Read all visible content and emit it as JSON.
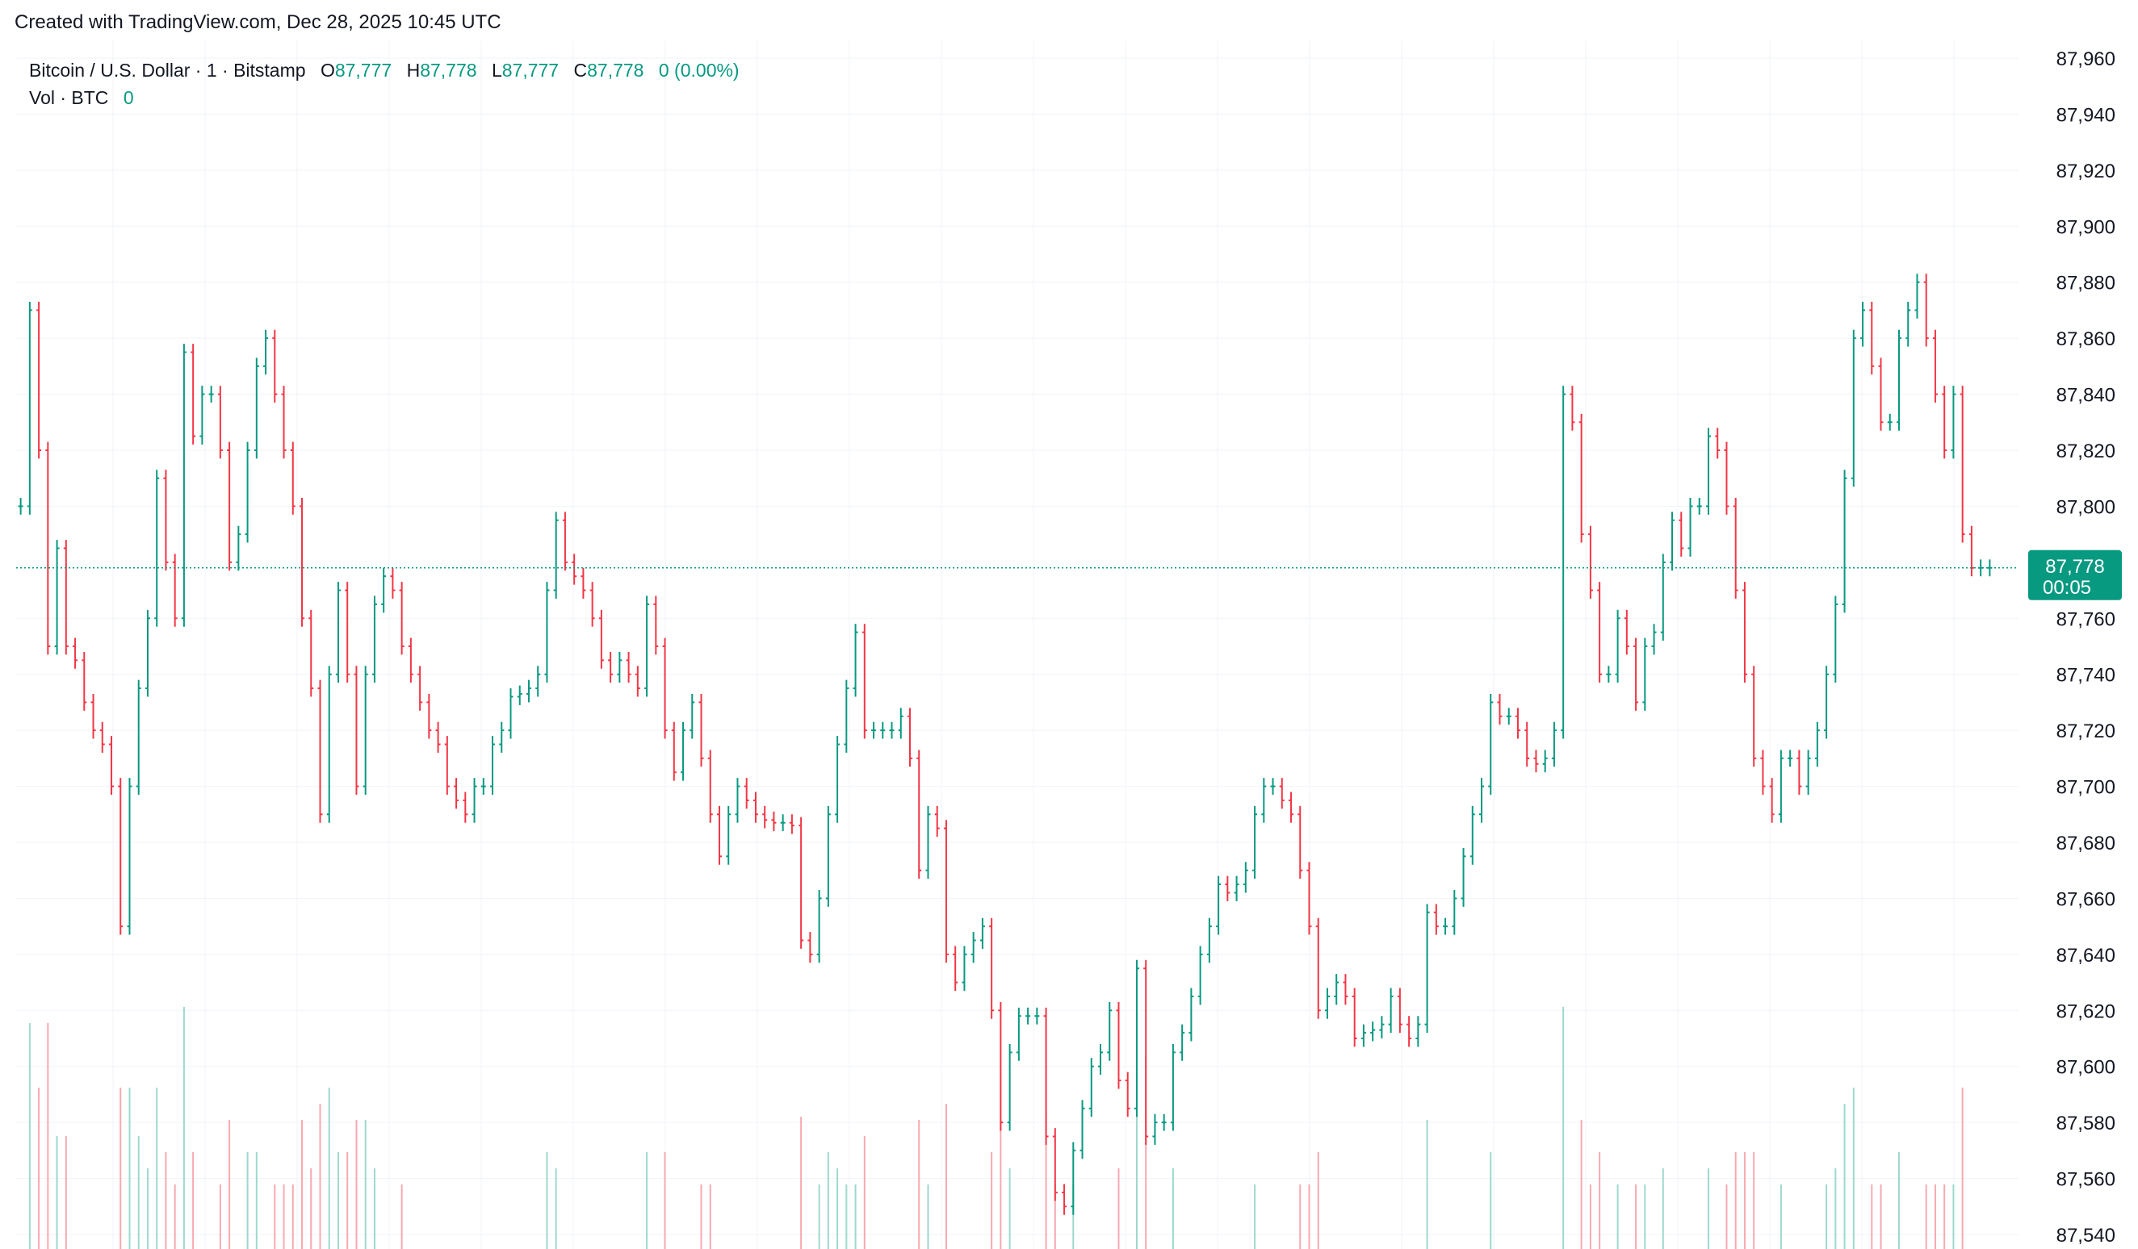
{
  "watermark": "Created with TradingView.com, Dec 28, 2025 10:45 UTC",
  "legend": {
    "title": "Bitcoin / U.S. Dollar · 1 · Bitstamp",
    "o_label": "O",
    "o_value": "87,777",
    "h_label": "H",
    "h_value": "87,778",
    "l_label": "L",
    "l_value": "87,777",
    "c_label": "C",
    "c_value": "87,778",
    "change": "0 (0.00%)",
    "vol_label": "Vol · BTC",
    "vol_value": "0"
  },
  "colors": {
    "up": "#089981",
    "down": "#f23645",
    "grid": "#f0f3fa",
    "tag_bg": "#089981",
    "text": "#131722"
  },
  "price_tag": {
    "price": "87,778",
    "countdown": "00:05"
  },
  "chart_data": {
    "type": "line",
    "title": "Bitcoin / U.S. Dollar · 1 · Bitstamp",
    "y_axis": {
      "ticks": [
        "87,960",
        "87,940",
        "87,920",
        "87,900",
        "87,880",
        "87,860",
        "87,840",
        "87,820",
        "87,800",
        "87,760",
        "87,740",
        "87,720",
        "87,700",
        "87,680",
        "87,660",
        "87,640",
        "87,620",
        "87,600",
        "87,580",
        "87,560",
        "87,540"
      ],
      "range": [
        87540,
        87960
      ],
      "position": "right"
    },
    "last_price": 87778,
    "grid": true,
    "series": [
      {
        "values": [
          87800,
          87870,
          87820,
          87750,
          87785,
          87750,
          87745,
          87730,
          87720,
          87715,
          87700,
          87650,
          87700,
          87735,
          87760,
          87810,
          87780,
          87760,
          87855,
          87825,
          87840,
          87840,
          87820,
          87780,
          87790,
          87820,
          87850,
          87860,
          87840,
          87820,
          87800,
          87760,
          87735,
          87690,
          87740,
          87770,
          87740,
          87700,
          87740,
          87765,
          87775,
          87770,
          87750,
          87740,
          87730,
          87720,
          87715,
          87700,
          87695,
          87690,
          87700,
          87700,
          87715,
          87720,
          87732,
          87733,
          87735,
          87740,
          87770,
          87795,
          87780,
          87775,
          87770,
          87760,
          87745,
          87740,
          87745,
          87740,
          87735,
          87765,
          87750,
          87720,
          87705,
          87720,
          87730,
          87710,
          87690,
          87675,
          87690,
          87700,
          87695,
          87690,
          87688,
          87687,
          87687,
          87686,
          87645,
          87640,
          87660,
          87690,
          87715,
          87735,
          87755,
          87720,
          87720,
          87720,
          87720,
          87725,
          87710,
          87670,
          87690,
          87685,
          87640,
          87630,
          87640,
          87645,
          87650,
          87620,
          87580,
          87605,
          87618,
          87618,
          87618,
          87575,
          87555,
          87550,
          87570,
          87585,
          87600,
          87605,
          87620,
          87595,
          87585,
          87635,
          87575,
          87580,
          87580,
          87605,
          87612,
          87625,
          87640,
          87650,
          87665,
          87662,
          87665,
          87670,
          87690,
          87700,
          87700,
          87695,
          87690,
          87670,
          87650,
          87620,
          87625,
          87630,
          87625,
          87610,
          87612,
          87613,
          87615,
          87625,
          87615,
          87610,
          87615,
          87655,
          87650,
          87650,
          87660,
          87675,
          87690,
          87700,
          87730,
          87725,
          87725,
          87720,
          87710,
          87708,
          87710,
          87720,
          87840,
          87830,
          87790,
          87770,
          87740,
          87740,
          87760,
          87750,
          87730,
          87750,
          87755,
          87780,
          87795,
          87785,
          87800,
          87800,
          87825,
          87820,
          87800,
          87770,
          87740,
          87710,
          87700,
          87690,
          87710,
          87710,
          87700,
          87710,
          87720,
          87740,
          87765,
          87810,
          87860,
          87870,
          87850,
          87830,
          87830,
          87860,
          87870,
          87880,
          87860,
          87840,
          87820,
          87840,
          87790,
          87778,
          87778,
          87778
        ]
      }
    ]
  }
}
